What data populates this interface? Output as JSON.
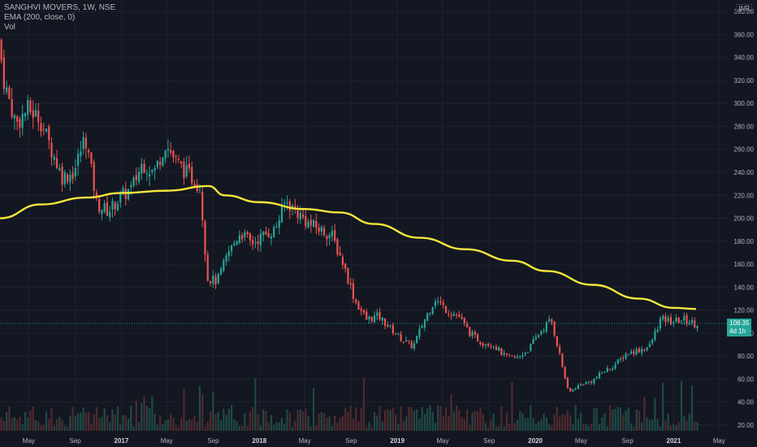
{
  "header": {
    "title": "SANGHVI MOVERS, 1W, NSE",
    "indicator": "EMA (200, close, 0)",
    "volume_label": "Vol"
  },
  "price_axis": {
    "unit": "INR",
    "current_price": "108.35",
    "countdown": "4d 1h"
  },
  "colors": {
    "background": "#131722",
    "up": "#26a69a",
    "down": "#ef5350",
    "ema": "#f5e63b",
    "grid": "#1e222d"
  },
  "chart_data": {
    "type": "candlestick",
    "title": "SANGHVI MOVERS, 1W, NSE",
    "ylim": [
      15,
      390
    ],
    "y_ticks": [
      20,
      40,
      60,
      80,
      100,
      120,
      140,
      160,
      180,
      200,
      220,
      240,
      260,
      280,
      300,
      320,
      340,
      360,
      380
    ],
    "y_tick_labels": [
      "20.00",
      "40.00",
      "60.00",
      "80.00",
      "100.00",
      "120.00",
      "140.00",
      "160.00",
      "180.00",
      "200.00",
      "220.00",
      "240.00",
      "260.00",
      "280.00",
      "300.00",
      "320.00",
      "340.00",
      "360.00",
      "380.00"
    ],
    "x_start": "2016-02-15",
    "x_end": "2021-05-24",
    "x_ticks": [
      {
        "date": "2016-05-01",
        "label": "May",
        "year": false
      },
      {
        "date": "2016-09-01",
        "label": "Sep",
        "year": false
      },
      {
        "date": "2017-01-01",
        "label": "2017",
        "year": true
      },
      {
        "date": "2017-05-01",
        "label": "May",
        "year": false
      },
      {
        "date": "2017-09-01",
        "label": "Sep",
        "year": false
      },
      {
        "date": "2018-01-01",
        "label": "2018",
        "year": true
      },
      {
        "date": "2018-05-01",
        "label": "May",
        "year": false
      },
      {
        "date": "2018-09-01",
        "label": "Sep",
        "year": false
      },
      {
        "date": "2019-01-01",
        "label": "2019",
        "year": true
      },
      {
        "date": "2019-05-01",
        "label": "May",
        "year": false
      },
      {
        "date": "2019-09-01",
        "label": "Sep",
        "year": false
      },
      {
        "date": "2020-01-01",
        "label": "2020",
        "year": true
      },
      {
        "date": "2020-05-01",
        "label": "May",
        "year": false
      },
      {
        "date": "2020-09-01",
        "label": "Sep",
        "year": false
      },
      {
        "date": "2021-01-01",
        "label": "2021",
        "year": true
      },
      {
        "date": "2021-05-01",
        "label": "May",
        "year": false
      }
    ],
    "close_series": {
      "name": "close",
      "points": [
        [
          "2016-02-15",
          355
        ],
        [
          "2016-03-01",
          318
        ],
        [
          "2016-04-01",
          282
        ],
        [
          "2016-05-01",
          295
        ],
        [
          "2016-06-01",
          288
        ],
        [
          "2016-07-01",
          262
        ],
        [
          "2016-08-01",
          236
        ],
        [
          "2016-09-01",
          240
        ],
        [
          "2016-10-01",
          272
        ],
        [
          "2016-11-01",
          212
        ],
        [
          "2016-12-01",
          206
        ],
        [
          "2017-01-01",
          218
        ],
        [
          "2017-02-01",
          226
        ],
        [
          "2017-03-01",
          248
        ],
        [
          "2017-04-01",
          240
        ],
        [
          "2017-05-01",
          265
        ],
        [
          "2017-06-01",
          248
        ],
        [
          "2017-07-01",
          238
        ],
        [
          "2017-08-01",
          228
        ],
        [
          "2017-08-20",
          148
        ],
        [
          "2017-09-15",
          145
        ],
        [
          "2017-10-15",
          170
        ],
        [
          "2017-11-15",
          188
        ],
        [
          "2017-12-15",
          178
        ],
        [
          "2018-01-15",
          185
        ],
        [
          "2018-02-15",
          190
        ],
        [
          "2018-03-15",
          215
        ],
        [
          "2018-04-15",
          205
        ],
        [
          "2018-05-15",
          195
        ],
        [
          "2018-06-15",
          190
        ],
        [
          "2018-07-15",
          185
        ],
        [
          "2018-08-15",
          160
        ],
        [
          "2018-09-15",
          128
        ],
        [
          "2018-10-15",
          112
        ],
        [
          "2018-11-15",
          115
        ],
        [
          "2018-12-15",
          105
        ],
        [
          "2019-01-15",
          95
        ],
        [
          "2019-02-15",
          88
        ],
        [
          "2019-03-15",
          110
        ],
        [
          "2019-04-15",
          130
        ],
        [
          "2019-05-15",
          120
        ],
        [
          "2019-06-15",
          115
        ],
        [
          "2019-07-15",
          100
        ],
        [
          "2019-08-15",
          92
        ],
        [
          "2019-09-15",
          90
        ],
        [
          "2019-10-15",
          80
        ],
        [
          "2019-11-15",
          78
        ],
        [
          "2019-12-15",
          85
        ],
        [
          "2020-01-15",
          100
        ],
        [
          "2020-02-15",
          112
        ],
        [
          "2020-03-10",
          80
        ],
        [
          "2020-04-01",
          48
        ],
        [
          "2020-05-01",
          55
        ],
        [
          "2020-06-01",
          58
        ],
        [
          "2020-07-01",
          66
        ],
        [
          "2020-08-01",
          72
        ],
        [
          "2020-09-01",
          82
        ],
        [
          "2020-10-01",
          85
        ],
        [
          "2020-11-01",
          88
        ],
        [
          "2020-12-01",
          112
        ],
        [
          "2021-01-01",
          110
        ],
        [
          "2021-02-01",
          112
        ],
        [
          "2021-03-01",
          108.35
        ]
      ]
    },
    "ema_series": {
      "name": "EMA (200, close, 0)",
      "points": [
        [
          "2016-02-15",
          200
        ],
        [
          "2016-06-01",
          212
        ],
        [
          "2016-10-01",
          218
        ],
        [
          "2017-01-01",
          222
        ],
        [
          "2017-05-01",
          224
        ],
        [
          "2017-08-20",
          228
        ],
        [
          "2017-10-01",
          220
        ],
        [
          "2018-01-01",
          214
        ],
        [
          "2018-05-01",
          208
        ],
        [
          "2018-08-01",
          205
        ],
        [
          "2018-11-01",
          195
        ],
        [
          "2019-03-01",
          183
        ],
        [
          "2019-07-01",
          173
        ],
        [
          "2019-11-01",
          163
        ],
        [
          "2020-02-01",
          154
        ],
        [
          "2020-06-01",
          142
        ],
        [
          "2020-10-01",
          130
        ],
        [
          "2021-01-01",
          122
        ],
        [
          "2021-03-01",
          121
        ]
      ]
    }
  }
}
